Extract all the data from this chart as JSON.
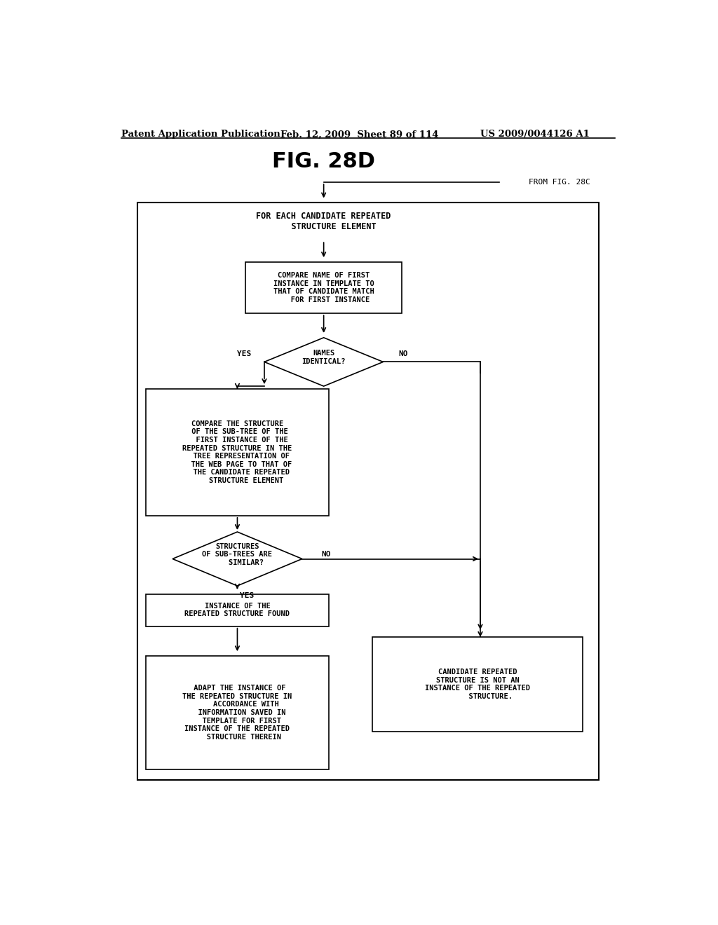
{
  "header_left": "Patent Application Publication",
  "header_mid": "Feb. 12, 2009  Sheet 89 of 114",
  "header_right": "US 2009/0044126 A1",
  "title": "FIG. 28D",
  "from_label": "FROM FIG. 28C",
  "bg_color": "#ffffff",
  "line_color": "#000000",
  "text_color": "#000000",
  "font_size": 7.5,
  "header_font_size": 9.5,
  "title_font_size": 22
}
